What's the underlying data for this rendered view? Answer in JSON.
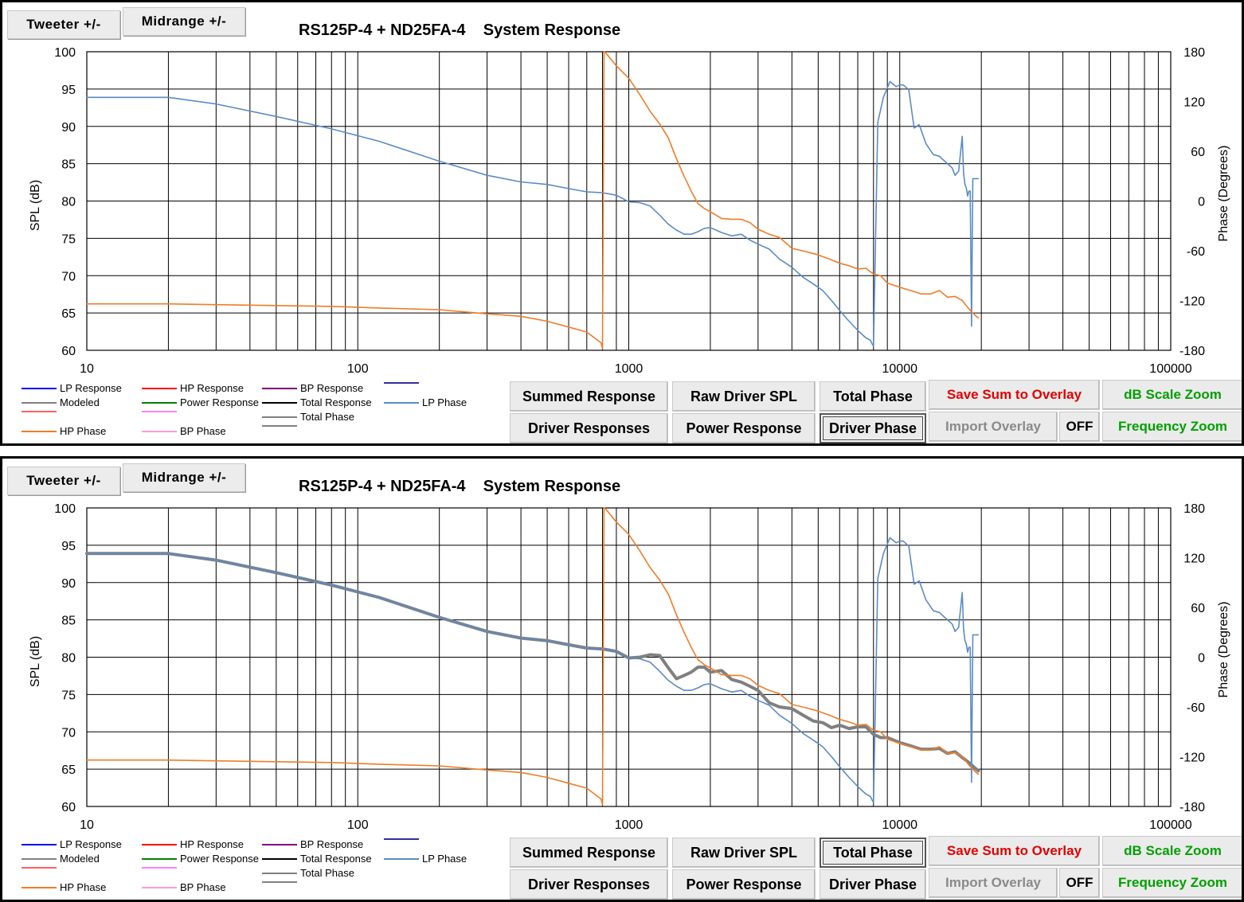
{
  "chart_data": [
    {
      "type": "line",
      "title": "RS125P-4 + ND25FA-4    System Response",
      "ylabel": "SPL (dB)",
      "y2label": "Phase (Degrees)",
      "xscale": "log",
      "xlim": [
        10,
        100000
      ],
      "ylim": [
        60,
        100
      ],
      "y2lim": [
        -180,
        180
      ],
      "grid": true,
      "xticks": [
        "10",
        "100",
        "1000",
        "10000",
        "100000"
      ],
      "yticks": [
        "60",
        "65",
        "70",
        "75",
        "80",
        "85",
        "90",
        "95",
        "100"
      ],
      "y2ticks": [
        "-180",
        "-120",
        "-60",
        "0",
        "60",
        "120",
        "180"
      ],
      "series": [
        {
          "name": "LP Phase",
          "axis": "right",
          "color": "#5b8bc4",
          "width": 1.6,
          "x": [
            10,
            20,
            30,
            50,
            80,
            120,
            200,
            300,
            400,
            500,
            600,
            700,
            800,
            900,
            1000,
            1100,
            1200,
            1300,
            1400,
            1500,
            1600,
            1700,
            1800,
            1900,
            2000,
            2200,
            2400,
            2600,
            2800,
            3000,
            3300,
            3600,
            4000,
            4400,
            4800,
            5200,
            5600,
            6000,
            6500,
            7000,
            7500,
            7800,
            7850,
            7900,
            8000,
            8300,
            8700,
            9200,
            9700,
            10000,
            10300,
            10800,
            11300,
            11800,
            12500,
            13300,
            14000,
            15000,
            15600,
            16000,
            16500,
            17000,
            17200,
            17400,
            17600,
            17800,
            18000,
            18200,
            18400,
            18600,
            19000,
            19500
          ],
          "y": [
            125,
            125,
            117,
            102,
            87,
            72,
            48,
            31,
            23,
            20,
            15,
            11,
            10,
            7,
            -1,
            -2,
            -6,
            -17,
            -28,
            -35,
            -40,
            -40,
            -37,
            -33,
            -32,
            -38,
            -42,
            -40,
            -47,
            -52,
            -58,
            -70,
            -80,
            -92,
            -100,
            -108,
            -120,
            -132,
            -145,
            -156,
            -165,
            -168,
            -170,
            -172,
            -175,
            95,
            125,
            144,
            138,
            140,
            140,
            134,
            88,
            92,
            69,
            56,
            54,
            45,
            40,
            31,
            36,
            78,
            34,
            20,
            16,
            6,
            12,
            12,
            -151,
            27,
            27,
            27
          ]
        },
        {
          "name": "HP Phase",
          "axis": "right",
          "color": "#f07c28",
          "width": 1.6,
          "x": [
            10,
            20,
            30,
            50,
            80,
            120,
            200,
            300,
            400,
            500,
            600,
            700,
            790,
            800,
            810,
            820,
            900,
            1000,
            1100,
            1200,
            1300,
            1400,
            1500,
            1600,
            1700,
            1800,
            1900,
            2000,
            2100,
            2200,
            2400,
            2600,
            2800,
            3000,
            3300,
            3600,
            4000,
            4500,
            5000,
            5500,
            6000,
            6500,
            7000,
            7500,
            8000,
            8500,
            9000,
            10000,
            11000,
            12000,
            13000,
            14000,
            15000,
            16000,
            17000,
            18000,
            19000,
            19500
          ],
          "y": [
            -124,
            -124,
            -125,
            -126,
            -127,
            -129,
            -131,
            -136,
            -139,
            -145,
            -152,
            -158,
            -171,
            -178,
            180,
            179,
            163,
            148,
            128,
            108,
            93,
            76,
            51,
            30,
            12,
            -3,
            -9,
            -13,
            -17,
            -21,
            -22,
            -22,
            -26,
            -34,
            -40,
            -44,
            -57,
            -61,
            -65,
            -70,
            -75,
            -78,
            -82,
            -81,
            -88,
            -90,
            -99,
            -104,
            -108,
            -112,
            -112,
            -108,
            -116,
            -115,
            -120,
            -130,
            -138,
            -141
          ]
        }
      ]
    },
    {
      "type": "line",
      "title": "RS125P-4 + ND25FA-4    System Response",
      "ylabel": "SPL (dB)",
      "y2label": "Phase (Degrees)",
      "xscale": "log",
      "xlim": [
        10,
        100000
      ],
      "ylim": [
        60,
        100
      ],
      "y2lim": [
        -180,
        180
      ],
      "grid": true,
      "xticks": [
        "10",
        "100",
        "1000",
        "10000",
        "100000"
      ],
      "yticks": [
        "60",
        "65",
        "70",
        "75",
        "80",
        "85",
        "90",
        "95",
        "100"
      ],
      "y2ticks": [
        "-180",
        "-120",
        "-60",
        "0",
        "60",
        "120",
        "180"
      ],
      "series": [
        {
          "name": "Total Phase",
          "axis": "right",
          "color": "#808080",
          "width": 4,
          "x": [
            10,
            20,
            30,
            50,
            80,
            120,
            200,
            300,
            400,
            500,
            600,
            700,
            800,
            900,
            1000,
            1100,
            1200,
            1300,
            1400,
            1500,
            1600,
            1700,
            1800,
            1900,
            2000,
            2200,
            2400,
            2600,
            2800,
            3000,
            3300,
            3600,
            4000,
            4400,
            4800,
            5200,
            5600,
            6000,
            6500,
            7000,
            7500,
            8000,
            8500,
            9000,
            9500,
            10000,
            11000,
            12000,
            13000,
            14000,
            15000,
            16000,
            17000,
            18000,
            19000,
            19500
          ],
          "y": [
            125,
            125,
            117,
            102,
            87,
            72,
            48,
            31,
            23,
            20,
            15,
            11,
            10,
            7,
            -1,
            0,
            3,
            2,
            -13,
            -26,
            -22,
            -18,
            -12,
            -12,
            -18,
            -16,
            -27,
            -30,
            -35,
            -40,
            -55,
            -60,
            -62,
            -70,
            -77,
            -79,
            -85,
            -82,
            -86,
            -84,
            -84,
            -93,
            -97,
            -97,
            -100,
            -103,
            -107,
            -111,
            -111,
            -110,
            -116,
            -114,
            -121,
            -127,
            -134,
            -137
          ]
        },
        {
          "name": "LP Phase",
          "axis": "right",
          "color": "#5b8bc4",
          "width": 1.6,
          "x": [
            10,
            20,
            30,
            50,
            80,
            120,
            200,
            300,
            400,
            500,
            600,
            700,
            800,
            900,
            1000,
            1100,
            1200,
            1300,
            1400,
            1500,
            1600,
            1700,
            1800,
            1900,
            2000,
            2200,
            2400,
            2600,
            2800,
            3000,
            3300,
            3600,
            4000,
            4400,
            4800,
            5200,
            5600,
            6000,
            6500,
            7000,
            7500,
            7800,
            7850,
            7900,
            8000,
            8300,
            8700,
            9200,
            9700,
            10000,
            10300,
            10800,
            11300,
            11800,
            12500,
            13300,
            14000,
            15000,
            15600,
            16000,
            16500,
            17000,
            17200,
            17400,
            17600,
            17800,
            18000,
            18200,
            18400,
            18600,
            19000,
            19500
          ],
          "y": [
            125,
            125,
            117,
            102,
            87,
            72,
            48,
            31,
            23,
            20,
            15,
            11,
            10,
            7,
            -1,
            -2,
            -6,
            -17,
            -28,
            -35,
            -40,
            -40,
            -37,
            -33,
            -32,
            -38,
            -42,
            -40,
            -47,
            -52,
            -58,
            -70,
            -80,
            -92,
            -100,
            -108,
            -120,
            -132,
            -145,
            -156,
            -165,
            -168,
            -170,
            -172,
            -175,
            95,
            125,
            144,
            138,
            140,
            140,
            134,
            88,
            92,
            69,
            56,
            54,
            45,
            40,
            31,
            36,
            78,
            34,
            20,
            16,
            6,
            12,
            12,
            -151,
            27,
            27,
            27
          ]
        },
        {
          "name": "HP Phase",
          "axis": "right",
          "color": "#f07c28",
          "width": 1.6,
          "x": [
            10,
            20,
            30,
            50,
            80,
            120,
            200,
            300,
            400,
            500,
            600,
            700,
            790,
            800,
            810,
            820,
            900,
            1000,
            1100,
            1200,
            1300,
            1400,
            1500,
            1600,
            1700,
            1800,
            1900,
            2000,
            2100,
            2200,
            2400,
            2600,
            2800,
            3000,
            3300,
            3600,
            4000,
            4500,
            5000,
            5500,
            6000,
            6500,
            7000,
            7500,
            8000,
            8500,
            9000,
            10000,
            11000,
            12000,
            13000,
            14000,
            15000,
            16000,
            17000,
            18000,
            19000,
            19500
          ],
          "y": [
            -124,
            -124,
            -125,
            -126,
            -127,
            -129,
            -131,
            -136,
            -139,
            -145,
            -152,
            -158,
            -171,
            -178,
            180,
            179,
            163,
            148,
            128,
            108,
            93,
            76,
            51,
            30,
            12,
            -3,
            -9,
            -13,
            -17,
            -21,
            -22,
            -22,
            -26,
            -34,
            -40,
            -44,
            -57,
            -61,
            -65,
            -70,
            -75,
            -78,
            -82,
            -81,
            -88,
            -90,
            -99,
            -104,
            -108,
            -112,
            -112,
            -108,
            -116,
            -115,
            -120,
            -130,
            -138,
            -141
          ]
        }
      ]
    }
  ],
  "panels": [
    {
      "tweeter_label": "Tweeter +/-",
      "midrange_label": "Midrange  +/-",
      "active": "driver_phase"
    },
    {
      "tweeter_label": "Tweeter +/-",
      "midrange_label": "Midrange  +/-",
      "active": "total_phase"
    }
  ],
  "legend": [
    {
      "label": "LP Response",
      "color": "#0000ff"
    },
    {
      "label": "Modeled",
      "color": "#808080"
    },
    {
      "label": "",
      "color": "#ff6060"
    },
    {
      "label": "HP Phase",
      "color": "#f07c28"
    },
    {
      "label": "HP Response",
      "color": "#ff0000"
    },
    {
      "label": "Power Response",
      "color": "#008000"
    },
    {
      "label": "",
      "color": "#ff80ff"
    },
    {
      "label": "BP Phase",
      "color": "#ff9ad6"
    },
    {
      "label": "BP Response",
      "color": "#800080"
    },
    {
      "label": "Total Response",
      "color": "#000000"
    },
    {
      "label": "Total Phase",
      "color": "#808080"
    },
    {
      "label": "",
      "color": "#808080"
    },
    {
      "label": "",
      "color": "#3030a0"
    },
    {
      "label": "LP Phase",
      "color": "#5b8bc4"
    }
  ],
  "buttons": {
    "summed_response": "Summed Response",
    "driver_responses": "Driver Responses",
    "raw_driver_spl": "Raw Driver SPL",
    "power_response": "Power Response",
    "total_phase": "Total Phase",
    "driver_phase": "Driver Phase",
    "save_sum": "Save Sum to Overlay",
    "import_overlay": "Import Overlay",
    "overlay_state": "OFF",
    "db_zoom": "dB Scale Zoom",
    "freq_zoom": "Frequency Zoom"
  }
}
